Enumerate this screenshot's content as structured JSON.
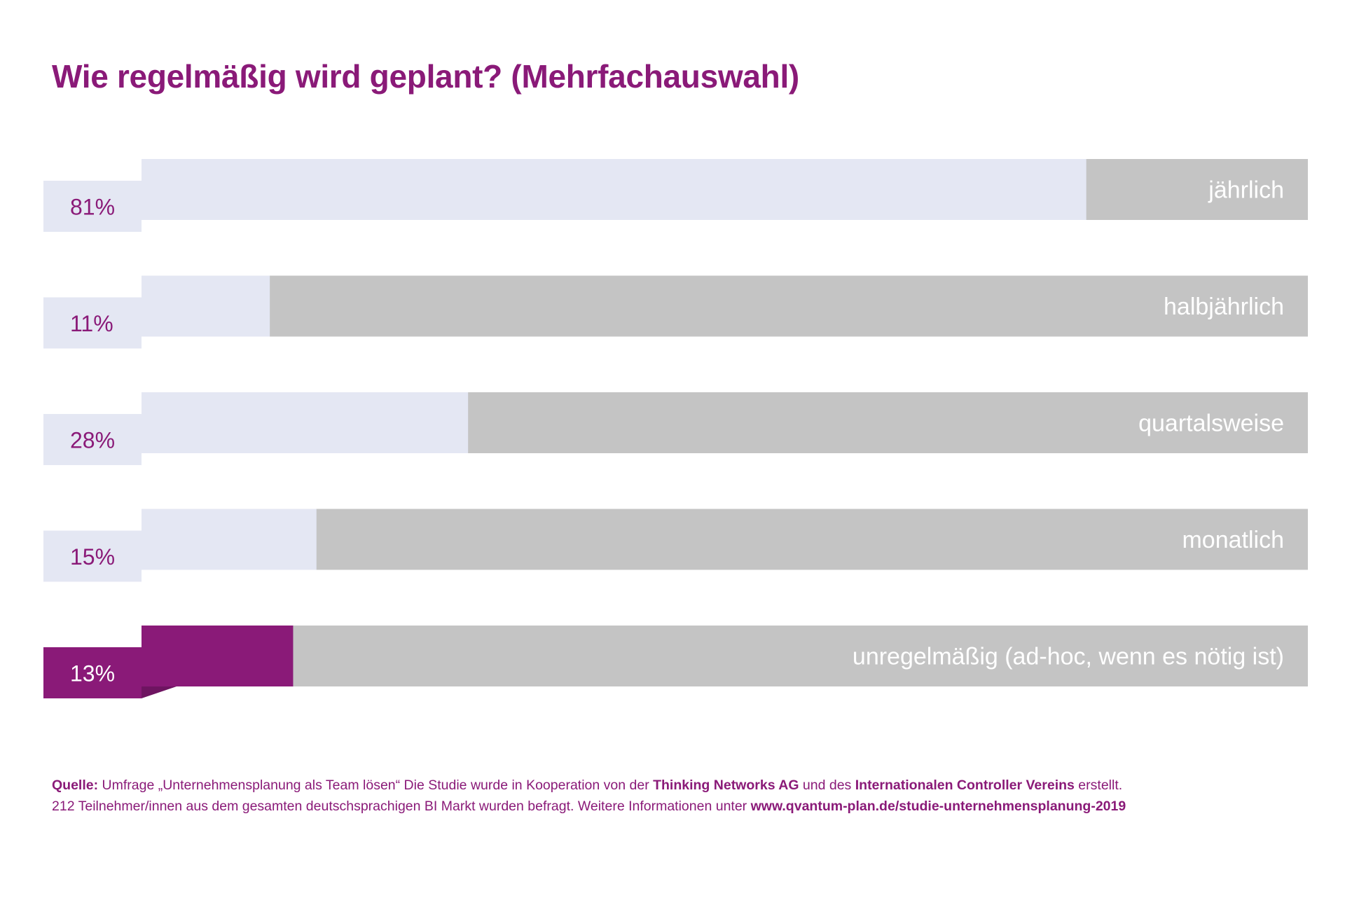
{
  "title": "Wie regelmäßig wird geplant? (Mehrfachauswahl)",
  "colors": {
    "accent": "#8a1a78",
    "bar_fill": "#e4e7f3",
    "bar_track": "#c4c4c4",
    "highlight": "#8a1a78",
    "fold_shadow": "#b3b3b3",
    "label_text": "#ffffff"
  },
  "chart_data": {
    "type": "bar",
    "orientation": "horizontal",
    "xlim": [
      0,
      100
    ],
    "categories": [
      "jährlich",
      "halbjährlich",
      "quartalsweise",
      "monatlich",
      "unregelmäßig (ad-hoc, wenn es nötig ist)"
    ],
    "values": [
      81,
      11,
      28,
      15,
      13
    ],
    "value_labels": [
      "81%",
      "11%",
      "28%",
      "15%",
      "13%"
    ],
    "highlighted": [
      false,
      false,
      false,
      false,
      true
    ]
  },
  "footer": {
    "source_label": "Quelle:",
    "line1_a": " Umfrage „Unternehmensplanung als Team lösen“ Die Studie wurde in Kooperation von der ",
    "org1": "Thinking Networks AG",
    "line1_b": " und des ",
    "org2": "Internationalen Controller Vereins",
    "line1_c": " erstellt.",
    "line2_a": "212 Teilnehmer/innen aus dem gesamten deutschsprachigen BI Markt wurden befragt. Weitere Informationen unter ",
    "link": "www.qvantum-plan.de/studie-unternehmensplanung-2019"
  }
}
